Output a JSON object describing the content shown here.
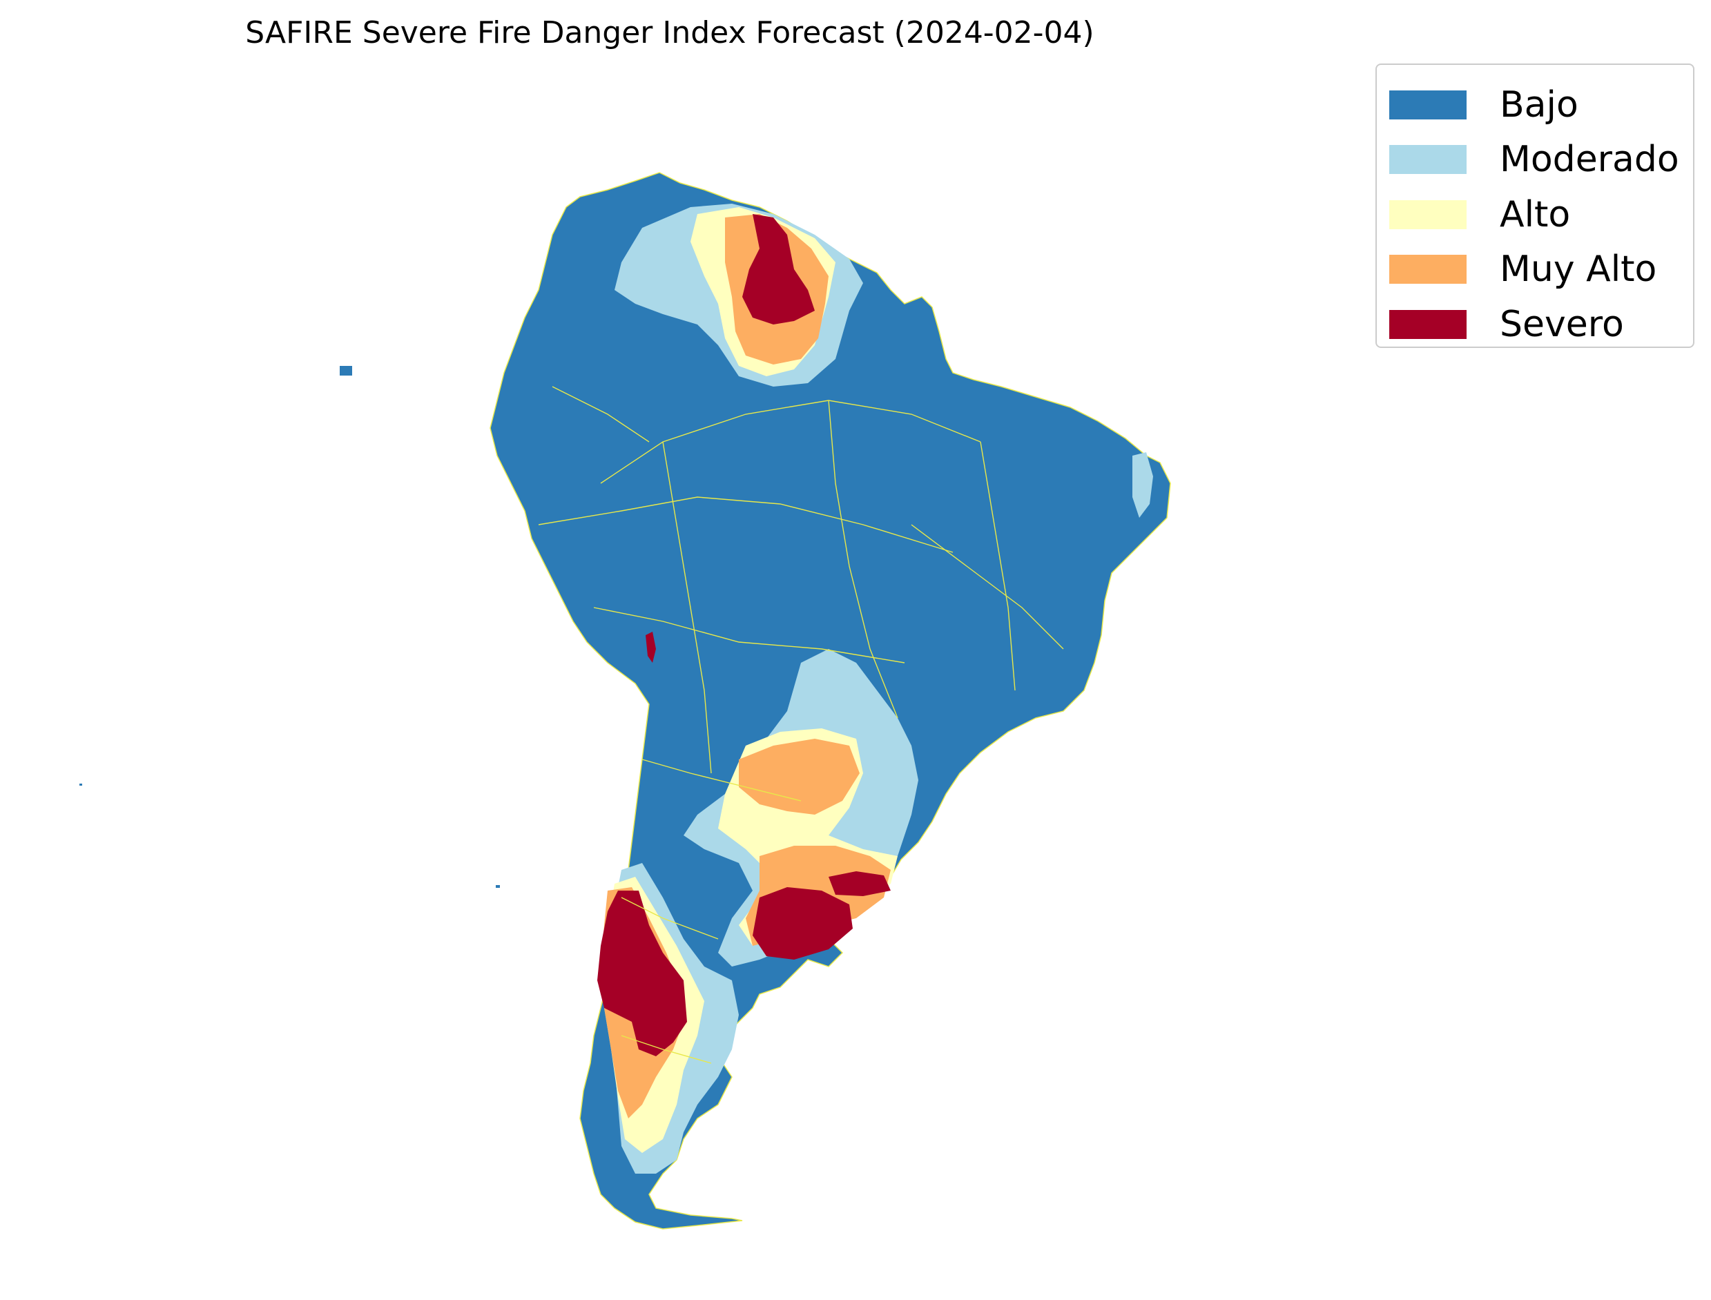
{
  "title": "SAFIRE Severe Fire Danger Index Forecast (2024-02-04)",
  "legend": {
    "items": [
      {
        "label": "Bajo",
        "color": "#2c7bb6"
      },
      {
        "label": "Moderado",
        "color": "#abd9e9"
      },
      {
        "label": "Alto",
        "color": "#ffffbf"
      },
      {
        "label": "Muy Alto",
        "color": "#fdae61"
      },
      {
        "label": "Severo",
        "color": "#a50026"
      }
    ]
  },
  "colors": {
    "boundary": "#e8e84a"
  }
}
